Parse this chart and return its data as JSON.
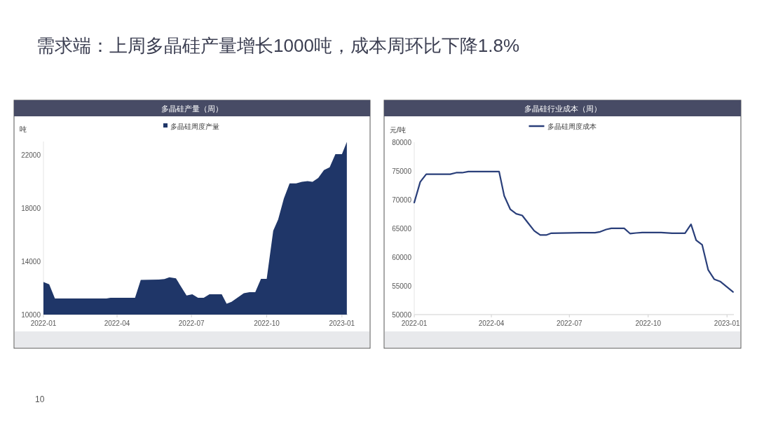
{
  "chart_data": [
    {
      "type": "area",
      "title": "多晶硅产量（周）",
      "ylabel": "吨",
      "legend": "top",
      "annotations": [
        "需求端：上周多晶硅产量增长1000吨，成本周环比下降1.8%",
        "10"
      ],
      "x": [
        "2022-01-01",
        "2022-01-08",
        "2022-01-15",
        "2022-03-19",
        "2022-03-24",
        "2022-04-23",
        "2022-04-30",
        "2022-05-22",
        "2022-05-29",
        "2022-06-04",
        "2022-06-12",
        "2022-06-25",
        "2022-07-02",
        "2022-07-09",
        "2022-07-16",
        "2022-07-23",
        "2022-08-07",
        "2022-08-13",
        "2022-08-19",
        "2022-09-03",
        "2022-09-10",
        "2022-09-17",
        "2022-09-24",
        "2022-10-01",
        "2022-10-09",
        "2022-10-15",
        "2022-10-22",
        "2022-10-29",
        "2022-11-06",
        "2022-11-13",
        "2022-11-20",
        "2022-11-26",
        "2022-12-03",
        "2022-12-10",
        "2022-12-17",
        "2022-12-24",
        "2023-01-01",
        "2023-01-07"
      ],
      "series": [
        {
          "name": "多晶硅周度产量",
          "color": "#1f3668",
          "values": [
            12450,
            12280,
            11210,
            11210,
            11260,
            11260,
            12600,
            12630,
            12670,
            12800,
            12720,
            11440,
            11530,
            11260,
            11260,
            11530,
            11530,
            10820,
            10960,
            11610,
            11680,
            11680,
            12680,
            12680,
            16300,
            17140,
            18720,
            19860,
            19860,
            19980,
            20030,
            19980,
            20260,
            20860,
            21070,
            22050,
            22050,
            22980
          ]
        }
      ],
      "xlim": [
        "2022-01-01",
        "2023-01-08"
      ],
      "xticks": [
        "2022-01",
        "2022-04",
        "2022-07",
        "2022-10",
        "2023-01"
      ],
      "ylim": [
        10000,
        23000
      ],
      "yticks": [
        10000,
        14000,
        18000,
        22000
      ]
    },
    {
      "type": "line",
      "title": "多晶硅行业成本（周）",
      "ylabel": "元/吨",
      "legend": "top",
      "x": [
        "2022-01-01",
        "2022-01-08",
        "2022-01-15",
        "2022-02-12",
        "2022-02-19",
        "2022-02-26",
        "2022-03-05",
        "2022-04-10",
        "2022-04-16",
        "2022-04-23",
        "2022-04-30",
        "2022-05-07",
        "2022-05-14",
        "2022-05-21",
        "2022-05-28",
        "2022-06-04",
        "2022-06-10",
        "2022-07-15",
        "2022-07-31",
        "2022-08-06",
        "2022-08-13",
        "2022-08-19",
        "2022-09-03",
        "2022-09-10",
        "2022-09-17",
        "2022-09-24",
        "2022-10-16",
        "2022-10-29",
        "2022-11-13",
        "2022-11-20",
        "2022-11-26",
        "2022-12-03",
        "2022-12-10",
        "2022-12-17",
        "2022-12-24",
        "2023-01-08"
      ],
      "series": [
        {
          "name": "多晶硅周度成本",
          "color": "#2a3f7a",
          "values": [
            69500,
            73100,
            74440,
            74440,
            74700,
            74700,
            74900,
            74900,
            70670,
            68350,
            67540,
            67260,
            65920,
            64580,
            63850,
            63850,
            64170,
            64250,
            64250,
            64410,
            64820,
            65020,
            65020,
            64090,
            64210,
            64290,
            64290,
            64170,
            64170,
            65710,
            62950,
            62140,
            57800,
            56170,
            55770,
            53940
          ]
        }
      ],
      "xlim": [
        "2022-01-01",
        "2023-01-09"
      ],
      "xticks": [
        "2022-01",
        "2022-04",
        "2022-07",
        "2022-10",
        "2023-01"
      ],
      "ylim": [
        50000,
        80000
      ],
      "yticks": [
        50000,
        55000,
        60000,
        65000,
        70000,
        75000,
        80000
      ]
    }
  ]
}
